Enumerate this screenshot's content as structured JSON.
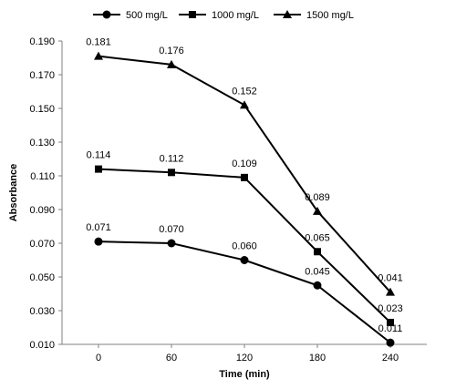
{
  "chart_data": {
    "type": "line",
    "title": "",
    "xlabel": "Time (min)",
    "ylabel": "Absorbance",
    "x": [
      0,
      60,
      120,
      180,
      240
    ],
    "x_tick_labels": [
      "0",
      "60",
      "120",
      "180",
      "240"
    ],
    "ylim": [
      0.01,
      0.19
    ],
    "y_ticks": [
      0.01,
      0.03,
      0.05,
      0.07,
      0.09,
      0.11,
      0.13,
      0.15,
      0.17,
      0.19
    ],
    "y_tick_labels": [
      "0.010",
      "0.030",
      "0.050",
      "0.070",
      "0.090",
      "0.110",
      "0.130",
      "0.150",
      "0.170",
      "0.190"
    ],
    "grid": false,
    "legend_position": "top",
    "series": [
      {
        "name": "500 mg/L",
        "marker": "circle",
        "values": [
          0.071,
          0.07,
          0.06,
          0.045,
          0.011
        ],
        "labels": [
          "0.071",
          "0.070",
          "0.060",
          "0.045",
          "0.011"
        ]
      },
      {
        "name": "1000 mg/L",
        "marker": "square",
        "values": [
          0.114,
          0.112,
          0.109,
          0.065,
          0.023
        ],
        "labels": [
          "0.114",
          "0.112",
          "0.109",
          "0.065",
          "0.023"
        ]
      },
      {
        "name": "1500 mg/L",
        "marker": "triangle",
        "values": [
          0.181,
          0.176,
          0.152,
          0.089,
          0.041
        ],
        "labels": [
          "0.181",
          "0.176",
          "0.152",
          "0.089",
          "0.041"
        ]
      }
    ],
    "colors": {
      "line": "#000000",
      "axis": "#808080"
    }
  }
}
